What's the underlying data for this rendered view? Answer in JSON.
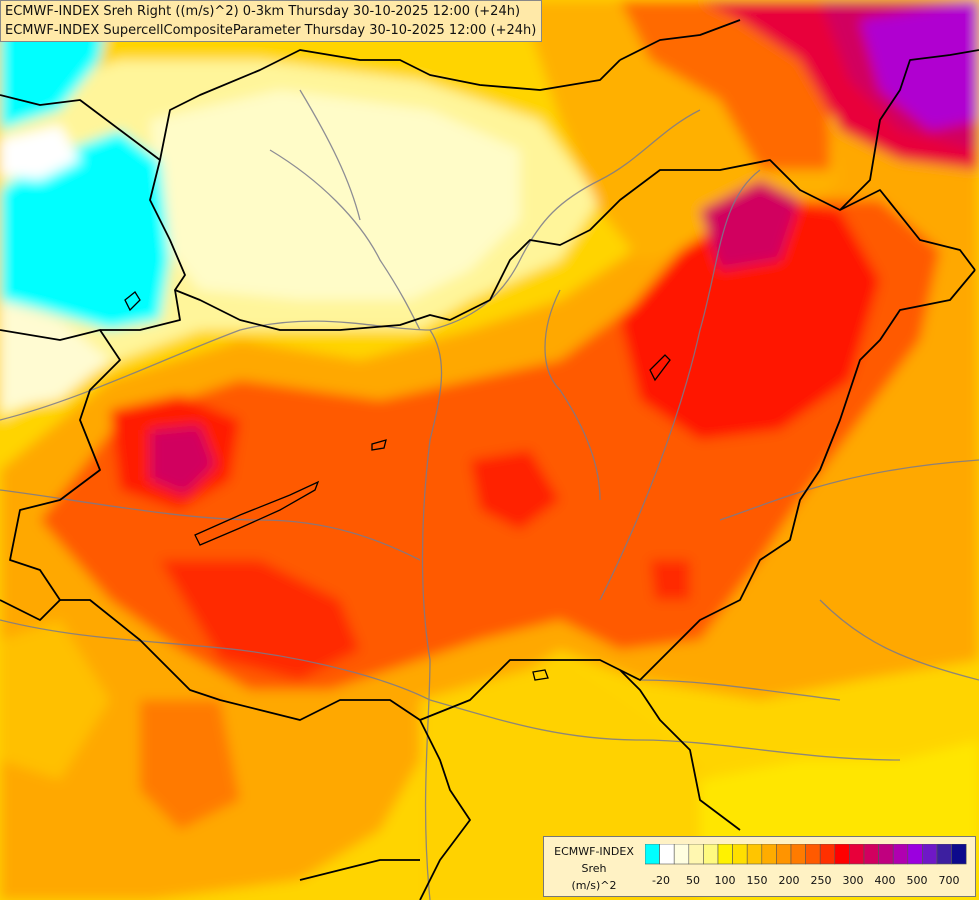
{
  "title": {
    "line1": "ECMWF-INDEX Sreh Right ((m/s)^2) 0-3km Thursday 30-10-2025 12:00 (+24h)",
    "line2": "ECMWF-INDEX SupercellCompositeParameter Thursday 30-10-2025 12:00 (+24h)"
  },
  "legend": {
    "model": "ECMWF-INDEX",
    "variable": "Sreh",
    "unit": "(m/s)^2",
    "colors": [
      "#00ffff",
      "#ffffff",
      "#fffee0",
      "#fff7b0",
      "#fffa80",
      "#fff200",
      "#ffdf00",
      "#ffc500",
      "#ffac00",
      "#ff9400",
      "#ff7b00",
      "#ff5a00",
      "#ff3000",
      "#ff0000",
      "#e8003a",
      "#d1005f",
      "#c0007f",
      "#b000b0",
      "#9b00df",
      "#6f18c7",
      "#3d1fa0",
      "#0d0a8c"
    ],
    "tick_labels": [
      "-20",
      "50",
      "100",
      "150",
      "200",
      "250",
      "300",
      "400",
      "500",
      "700"
    ]
  },
  "colors": {
    "low_cyan": "#00ffff",
    "pale": "#fffcc8",
    "yellow": "#ffe600",
    "orange": "#ffa800",
    "red_orange": "#ff5a00",
    "red": "#ff1500",
    "magenta": "#d1005f",
    "purple": "#b000d0",
    "border": "#000000",
    "river": "#7a7a8c"
  }
}
